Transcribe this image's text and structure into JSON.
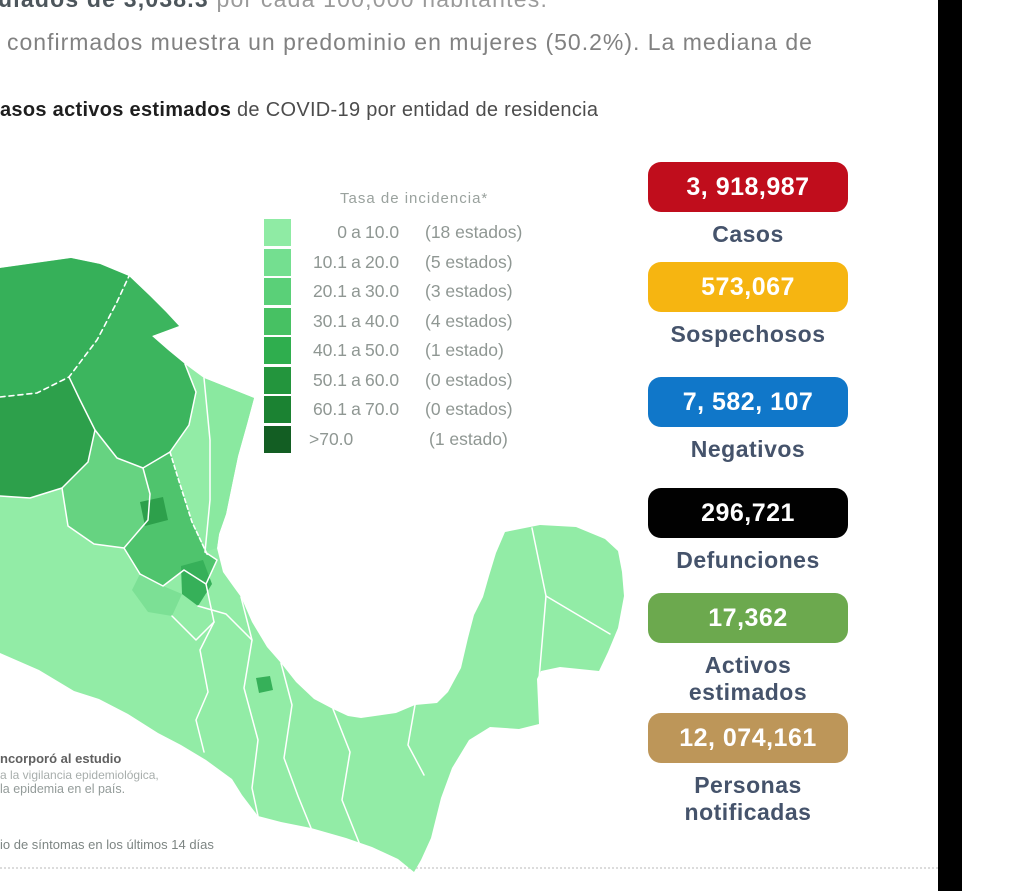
{
  "header": {
    "top_fragment_bold": "ulados de 3,038.3",
    "top_fragment_regular": " por cada 100,000 habitantes.",
    "intro_line": "confirmados muestra un predominio en mujeres (50.2%). La mediana de",
    "title_bold": "asos activos estimados",
    "title_regular": " de COVID-19 por entidad de residencia"
  },
  "legend": {
    "title": "Tasa de incidencia*",
    "rows": [
      {
        "from": "0",
        "to": "10.0",
        "count": "(18 estados)",
        "color": "#8feba4"
      },
      {
        "from": "10.1",
        "to": "20.0",
        "count": "(5 estados)",
        "color": "#74df90"
      },
      {
        "from": "20.1",
        "to": "30.0",
        "count": "(3 estados)",
        "color": "#5ad078"
      },
      {
        "from": "30.1",
        "to": "40.0",
        "count": "(4 estados)",
        "color": "#47c163"
      },
      {
        "from": "40.1",
        "to": "50.0",
        "count": "(1 estado)",
        "color": "#2fae4e"
      },
      {
        "from": "50.1",
        "to": "60.0",
        "count": "(0 estados)",
        "color": "#23953d"
      },
      {
        "from": "60.1",
        "to": "70.0",
        "count": "(0 estados)",
        "color": "#1b8232"
      },
      {
        "from": ">70.0",
        "to": "",
        "count": "(1 estado)",
        "color": "#135e23"
      }
    ]
  },
  "stats": [
    {
      "value": "3, 918,987",
      "label_lines": [
        "Casos"
      ],
      "color": "#c00d1c"
    },
    {
      "value": "573,067",
      "label_lines": [
        "Sospechosos"
      ],
      "color": "#f6b511"
    },
    {
      "value": "7, 582, 107",
      "label_lines": [
        "Negativos"
      ],
      "color": "#1077c9"
    },
    {
      "value": "296,721",
      "label_lines": [
        "Defunciones"
      ],
      "color": "#010101"
    },
    {
      "value": "17,362",
      "label_lines": [
        "Activos",
        "estimados"
      ],
      "color": "#6ca94e"
    },
    {
      "value": "12, 074,161",
      "label_lines": [
        "Personas",
        "notificadas"
      ],
      "color": "#bd9659"
    }
  ],
  "footnotes": [
    "ncorporó al estudio",
    "a la vigilancia epidemiológica,",
    "la epidemia en el país.",
    "io de síntomas en los últimos 14 días"
  ],
  "map": {
    "base_color": "#92eca6",
    "border_color": "#ffffff"
  }
}
